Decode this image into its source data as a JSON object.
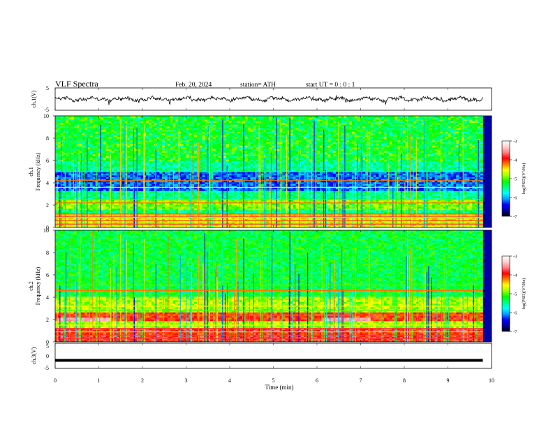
{
  "header": {
    "title": "VLF  Spectra",
    "date": "Feb. 20, 2024",
    "station": "station= ATH",
    "start_ut": "start  UT  =   0 : 0  : 1"
  },
  "colors": {
    "waveform": "#000000",
    "ch3_trace": "#000000",
    "colormap": [
      "#000000",
      "#0000a0",
      "#0000ff",
      "#00a0ff",
      "#00ffff",
      "#00ff80",
      "#00ff00",
      "#a0ff00",
      "#ffff00",
      "#ff8000",
      "#ff0000",
      "#ff8080",
      "#ffd0d0",
      "#ffffff"
    ]
  },
  "chart_data": [
    {
      "type": "line",
      "name": "ch1-waveform",
      "ylabel": "ch.1(V)",
      "ylim": [
        -5,
        5
      ],
      "yticks": [
        "5",
        "-5"
      ],
      "x_range_min": [
        0,
        9.8
      ],
      "y_approx": 0,
      "y_noise_amplitude": 1
    },
    {
      "type": "heatmap",
      "name": "ch1-spectrogram",
      "ylabel_channel": "ch.1",
      "ylabel": "Frequency (kHz)",
      "ylim": [
        0,
        10
      ],
      "yticks": [
        "0",
        "2",
        "4",
        "6",
        "8",
        "10"
      ],
      "x_range_min": [
        0,
        9.8
      ],
      "colorbar": {
        "label": "log(PSD)(V²/Hz)",
        "range": [
          -7,
          -3
        ],
        "ticks": [
          "-3",
          "-4",
          "-5",
          "-6",
          "-7"
        ]
      }
    },
    {
      "type": "heatmap",
      "name": "ch2-spectrogram",
      "ylabel_channel": "ch.2",
      "ylabel": "Frequency (kHz)",
      "ylim": [
        0,
        10
      ],
      "yticks": [
        "0",
        "2",
        "4",
        "6",
        "8",
        "10"
      ],
      "x_range_min": [
        0,
        9.8
      ],
      "colorbar": {
        "label": "log(PSD)(V²/Hz)",
        "range": [
          -7,
          -3
        ],
        "ticks": [
          "-3",
          "-4",
          "-5",
          "-6",
          "-7"
        ]
      }
    },
    {
      "type": "line",
      "name": "ch3-trace",
      "ylabel": "ch.3(V)",
      "ylim": [
        -5,
        5
      ],
      "yticks": [
        "5",
        "0",
        "-5"
      ],
      "x_range_min": [
        0,
        9.8
      ],
      "y_constant": -1.8
    }
  ],
  "x_axis": {
    "label": "Time  (min)",
    "xlim": [
      0,
      10
    ],
    "ticks": [
      "0",
      "1",
      "2",
      "3",
      "4",
      "5",
      "6",
      "7",
      "8",
      "9",
      "10"
    ]
  }
}
